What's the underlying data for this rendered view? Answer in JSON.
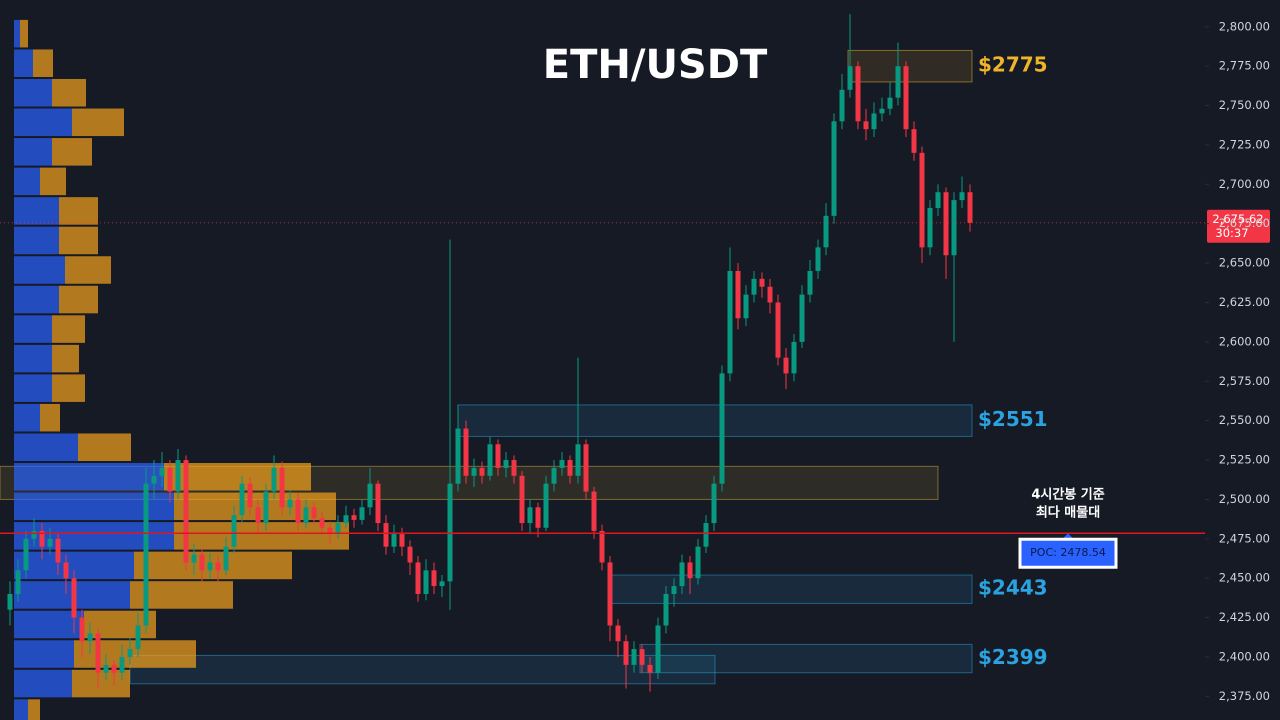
{
  "chart_data": {
    "type": "candlestick",
    "title": "ETH/USDT",
    "ylim": [
      2360,
      2817
    ],
    "yticks": [
      {
        "value": 2375,
        "label": "2,375.00"
      },
      {
        "value": 2400,
        "label": "2,400.00"
      },
      {
        "value": 2425,
        "label": "2,425.00"
      },
      {
        "value": 2450,
        "label": "2,450.00"
      },
      {
        "value": 2475,
        "label": "2,475.00"
      },
      {
        "value": 2500,
        "label": "2,500.00"
      },
      {
        "value": 2525,
        "label": "2,525.00"
      },
      {
        "value": 2550,
        "label": "2,550.00"
      },
      {
        "value": 2575,
        "label": "2,575.00"
      },
      {
        "value": 2600,
        "label": "2,600.00"
      },
      {
        "value": 2625,
        "label": "2,625.00"
      },
      {
        "value": 2650,
        "label": "2,650.00"
      },
      {
        "value": 2675,
        "label": "2,675.00"
      },
      {
        "value": 2700,
        "label": "2,700.00"
      },
      {
        "value": 2725,
        "label": "2,725.00"
      },
      {
        "value": 2750,
        "label": "2,750.00"
      },
      {
        "value": 2775,
        "label": "2,775.00"
      },
      {
        "value": 2800,
        "label": "2,800.00"
      }
    ],
    "up_color": "#089981",
    "down_color": "#f23645",
    "ohlc": [
      [
        2430,
        2448,
        2420,
        2440
      ],
      [
        2440,
        2462,
        2435,
        2455
      ],
      [
        2455,
        2480,
        2450,
        2475
      ],
      [
        2475,
        2488,
        2470,
        2480
      ],
      [
        2480,
        2485,
        2462,
        2470
      ],
      [
        2470,
        2482,
        2465,
        2475
      ],
      [
        2475,
        2478,
        2452,
        2460
      ],
      [
        2460,
        2465,
        2440,
        2450
      ],
      [
        2450,
        2455,
        2415,
        2425
      ],
      [
        2425,
        2430,
        2400,
        2410
      ],
      [
        2410,
        2422,
        2402,
        2415
      ],
      [
        2415,
        2418,
        2380,
        2390
      ],
      [
        2390,
        2402,
        2385,
        2395
      ],
      [
        2395,
        2398,
        2382,
        2390
      ],
      [
        2390,
        2408,
        2385,
        2400
      ],
      [
        2400,
        2412,
        2395,
        2405
      ],
      [
        2405,
        2428,
        2400,
        2420
      ],
      [
        2420,
        2520,
        2415,
        2510
      ],
      [
        2510,
        2525,
        2500,
        2515
      ],
      [
        2515,
        2530,
        2508,
        2520
      ],
      [
        2520,
        2525,
        2498,
        2505
      ],
      [
        2505,
        2532,
        2500,
        2525
      ],
      [
        2525,
        2528,
        2455,
        2460
      ],
      [
        2460,
        2472,
        2452,
        2465
      ],
      [
        2465,
        2468,
        2448,
        2455
      ],
      [
        2455,
        2466,
        2450,
        2460
      ],
      [
        2460,
        2464,
        2448,
        2455
      ],
      [
        2455,
        2476,
        2452,
        2470
      ],
      [
        2470,
        2496,
        2466,
        2490
      ],
      [
        2490,
        2515,
        2485,
        2510
      ],
      [
        2510,
        2514,
        2490,
        2495
      ],
      [
        2495,
        2500,
        2478,
        2485
      ],
      [
        2485,
        2510,
        2480,
        2505
      ],
      [
        2505,
        2528,
        2500,
        2520
      ],
      [
        2520,
        2524,
        2490,
        2495
      ],
      [
        2495,
        2506,
        2490,
        2500
      ],
      [
        2500,
        2504,
        2480,
        2485
      ],
      [
        2485,
        2500,
        2482,
        2495
      ],
      [
        2495,
        2498,
        2484,
        2488
      ],
      [
        2488,
        2492,
        2478,
        2482
      ],
      [
        2482,
        2486,
        2472,
        2478
      ],
      [
        2478,
        2490,
        2475,
        2485
      ],
      [
        2485,
        2496,
        2482,
        2490
      ],
      [
        2490,
        2494,
        2482,
        2487
      ],
      [
        2487,
        2500,
        2484,
        2495
      ],
      [
        2495,
        2520,
        2490,
        2510
      ],
      [
        2510,
        2512,
        2480,
        2485
      ],
      [
        2485,
        2490,
        2465,
        2470
      ],
      [
        2470,
        2484,
        2466,
        2478
      ],
      [
        2478,
        2482,
        2464,
        2470
      ],
      [
        2470,
        2474,
        2452,
        2460
      ],
      [
        2460,
        2464,
        2435,
        2440
      ],
      [
        2440,
        2462,
        2436,
        2455
      ],
      [
        2455,
        2460,
        2440,
        2445
      ],
      [
        2445,
        2452,
        2438,
        2448
      ],
      [
        2448,
        2665,
        2430,
        2510
      ],
      [
        2510,
        2560,
        2505,
        2545
      ],
      [
        2545,
        2550,
        2510,
        2515
      ],
      [
        2515,
        2526,
        2508,
        2520
      ],
      [
        2520,
        2524,
        2510,
        2515
      ],
      [
        2515,
        2540,
        2512,
        2535
      ],
      [
        2535,
        2538,
        2515,
        2520
      ],
      [
        2520,
        2530,
        2514,
        2525
      ],
      [
        2525,
        2528,
        2510,
        2515
      ],
      [
        2515,
        2518,
        2480,
        2485
      ],
      [
        2485,
        2500,
        2478,
        2495
      ],
      [
        2495,
        2498,
        2476,
        2482
      ],
      [
        2482,
        2515,
        2480,
        2510
      ],
      [
        2510,
        2525,
        2505,
        2520
      ],
      [
        2520,
        2530,
        2515,
        2525
      ],
      [
        2525,
        2528,
        2510,
        2515
      ],
      [
        2515,
        2590,
        2510,
        2535
      ],
      [
        2535,
        2538,
        2500,
        2505
      ],
      [
        2505,
        2508,
        2475,
        2480
      ],
      [
        2480,
        2484,
        2455,
        2460
      ],
      [
        2460,
        2464,
        2410,
        2420
      ],
      [
        2420,
        2424,
        2400,
        2410
      ],
      [
        2410,
        2414,
        2380,
        2395
      ],
      [
        2395,
        2410,
        2390,
        2405
      ],
      [
        2405,
        2408,
        2390,
        2395
      ],
      [
        2395,
        2400,
        2378,
        2390
      ],
      [
        2390,
        2425,
        2386,
        2420
      ],
      [
        2420,
        2445,
        2415,
        2440
      ],
      [
        2440,
        2450,
        2432,
        2445
      ],
      [
        2445,
        2465,
        2440,
        2460
      ],
      [
        2460,
        2464,
        2440,
        2450
      ],
      [
        2450,
        2475,
        2446,
        2470
      ],
      [
        2470,
        2490,
        2466,
        2485
      ],
      [
        2485,
        2515,
        2480,
        2510
      ],
      [
        2510,
        2585,
        2505,
        2580
      ],
      [
        2580,
        2660,
        2575,
        2645
      ],
      [
        2645,
        2650,
        2608,
        2615
      ],
      [
        2615,
        2636,
        2610,
        2630
      ],
      [
        2630,
        2645,
        2625,
        2640
      ],
      [
        2640,
        2644,
        2628,
        2635
      ],
      [
        2635,
        2640,
        2618,
        2625
      ],
      [
        2625,
        2630,
        2585,
        2590
      ],
      [
        2590,
        2596,
        2570,
        2580
      ],
      [
        2580,
        2605,
        2575,
        2600
      ],
      [
        2600,
        2636,
        2596,
        2630
      ],
      [
        2630,
        2652,
        2625,
        2645
      ],
      [
        2645,
        2665,
        2640,
        2660
      ],
      [
        2660,
        2688,
        2655,
        2680
      ],
      [
        2680,
        2745,
        2675,
        2740
      ],
      [
        2740,
        2770,
        2735,
        2760
      ],
      [
        2760,
        2808,
        2755,
        2775
      ],
      [
        2775,
        2778,
        2735,
        2740
      ],
      [
        2740,
        2748,
        2728,
        2735
      ],
      [
        2735,
        2752,
        2730,
        2745
      ],
      [
        2745,
        2755,
        2740,
        2748
      ],
      [
        2748,
        2765,
        2744,
        2755
      ],
      [
        2755,
        2790,
        2750,
        2775
      ],
      [
        2775,
        2778,
        2730,
        2735
      ],
      [
        2735,
        2740,
        2715,
        2720
      ],
      [
        2720,
        2724,
        2650,
        2660
      ],
      [
        2660,
        2690,
        2655,
        2685
      ],
      [
        2685,
        2700,
        2680,
        2695
      ],
      [
        2695,
        2698,
        2640,
        2655
      ],
      [
        2655,
        2695,
        2600,
        2690
      ],
      [
        2690,
        2705,
        2685,
        2695
      ],
      [
        2695,
        2700,
        2670,
        2675.62
      ]
    ],
    "profile": {
      "bins": [
        2355,
        2373.75,
        2392.5,
        2411.25,
        2430,
        2448.75,
        2467.5,
        2486.25,
        2505,
        2523.75,
        2542.5,
        2561.25,
        2580,
        2598.75,
        2617.5,
        2636.25,
        2655,
        2673.75,
        2692.5,
        2711.25,
        2730,
        2748.75,
        2767.5,
        2786.25,
        2805
      ],
      "buy": [
        14,
        58,
        60,
        70,
        116,
        120,
        160,
        160,
        150,
        64,
        26,
        38,
        38,
        38,
        45,
        51,
        45,
        45,
        26,
        38,
        58,
        38,
        19,
        6
      ],
      "sell": [
        12,
        58,
        122,
        72,
        103,
        158,
        175,
        162,
        147,
        53,
        20,
        33,
        27,
        33,
        39,
        46,
        39,
        39,
        26,
        40,
        52,
        34,
        20,
        8
      ],
      "buy_color": "#2962ff",
      "sell_color": "#f7a21b"
    },
    "zones": [
      {
        "label": "$2775",
        "low": 2765,
        "high": 2785,
        "color": "#f0b429"
      },
      {
        "label": "$2551",
        "low": 2540,
        "high": 2560,
        "color": "#2aa3e0"
      },
      {
        "label": "$2443",
        "low": 2434,
        "high": 2452,
        "color": "#2aa3e0"
      },
      {
        "label": "$2399",
        "low": 2390,
        "high": 2408,
        "color": "#2aa3e0"
      },
      {
        "low": 2500,
        "high": 2521,
        "color": "#d4b23a"
      },
      {
        "low": 2383,
        "high": 2401,
        "color": "#2aa3e0"
      }
    ],
    "poc": {
      "value": 2478.54,
      "label": "POC: 2478.54"
    },
    "poc_note": [
      "4시간봉 기준",
      "최다 매물대"
    ],
    "last_price": {
      "value": 2675.62,
      "label": "2,675.62"
    },
    "countdown": "30:37"
  }
}
